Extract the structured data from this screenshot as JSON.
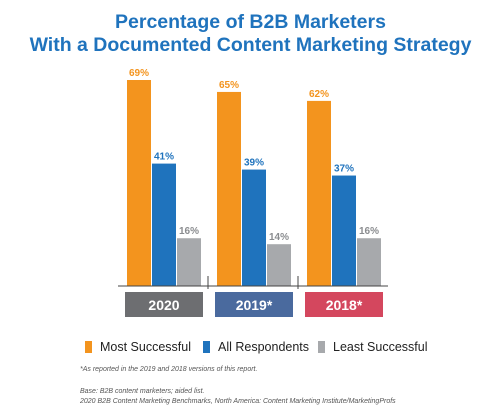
{
  "title_line1": "Percentage of B2B Marketers",
  "title_line2": "With a Documented Content Marketing Strategy",
  "chart_data": {
    "type": "bar",
    "categories": [
      "2020",
      "2019*",
      "2018*"
    ],
    "category_colors": [
      "#6d6e71",
      "#4a6a9e",
      "#d4475e"
    ],
    "series": [
      {
        "name": "Most Successful",
        "color": "#f3941e",
        "values": [
          69,
          65,
          62
        ],
        "labels": [
          "69%",
          "65%",
          "62%"
        ]
      },
      {
        "name": "All Respondents",
        "color": "#1f73bd",
        "values": [
          41,
          39,
          37
        ],
        "labels": [
          "41%",
          "39%",
          "37%"
        ]
      },
      {
        "name": "Least Successful",
        "color": "#a7a9ac",
        "values": [
          16,
          14,
          16
        ],
        "labels": [
          "16%",
          "14%",
          "16%"
        ]
      }
    ],
    "ylim": [
      0,
      69
    ]
  },
  "legend": {
    "items": [
      {
        "label": "Most Successful",
        "color": "#f3941e"
      },
      {
        "label": "All Respondents",
        "color": "#1f73bd"
      },
      {
        "label": "Least Successful",
        "color": "#a7a9ac"
      }
    ]
  },
  "footnotes": {
    "line1": "*As reported in the 2019 and 2018 versions of this report.",
    "line2": "Base: B2B content marketers; aided list.",
    "line3": "2020 B2B Content Marketing Benchmarks, North America: Content Marketing Institute/MarketingProfs"
  }
}
